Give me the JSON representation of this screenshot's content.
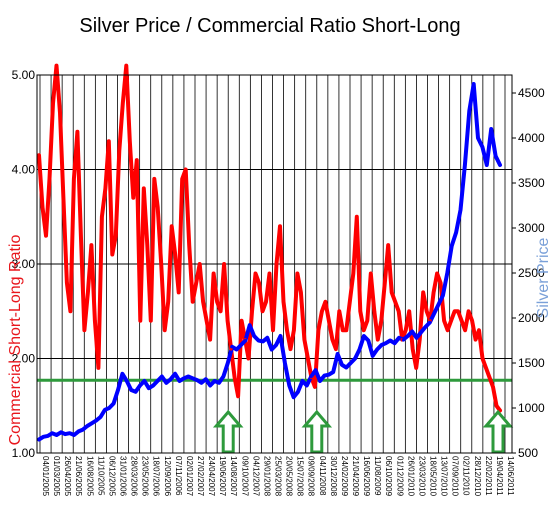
{
  "chart_data": {
    "type": "line",
    "title": "Silver Price / Commercial Ratio Short-Long",
    "ylabel_left": "Commercial Short-Long Ratio",
    "ylabel_right": "Silver Price",
    "ylim_left": [
      1.0,
      5.0
    ],
    "ylim_right": [
      500,
      4700
    ],
    "yticks_left": [
      "1.00",
      "2.00",
      "3.00",
      "4.00",
      "5.00"
    ],
    "yticks_right": [
      "500",
      "1000",
      "1500",
      "2000",
      "2500",
      "3000",
      "3500",
      "4000",
      "4500"
    ],
    "x_tick_labels": [
      "04/01/2005",
      "01/03/2005",
      "26/04/2005",
      "21/06/2005",
      "16/08/2005",
      "11/10/2005",
      "06/12/2005",
      "31/01/2006",
      "28/03/2006",
      "23/05/2006",
      "18/07/2006",
      "12/09/2006",
      "07/11/2006",
      "02/01/2007",
      "27/02/2007",
      "24/04/2007",
      "19/06/2007",
      "14/08/2007",
      "09/10/2007",
      "04/12/2007",
      "29/01/2008",
      "25/03/2008",
      "20/05/2008",
      "15/07/2008",
      "09/09/2008",
      "04/11/2008",
      "30/12/2008",
      "24/02/2009",
      "21/04/2009",
      "16/06/2009",
      "11/08/2009",
      "06/10/2009",
      "01/12/2009",
      "26/01/2010",
      "23/03/2010",
      "18/05/2010",
      "13/07/2010",
      "07/09/2010",
      "02/11/2010",
      "28/12/2010",
      "22/02/2011",
      "19/04/2011",
      "14/06/2011"
    ],
    "grid": true,
    "reference_line": {
      "axis": "left",
      "value": 1.77,
      "color": "#2e9a3c"
    },
    "arrow_markers_at": [
      "14/08/2007",
      "04/11/2008",
      "14/06/2011"
    ],
    "series": [
      {
        "name": "Commercial Short-Long Ratio",
        "axis": "left",
        "color": "#ff0000",
        "values": [
          4.15,
          3.6,
          3.3,
          3.9,
          4.7,
          5.1,
          4.6,
          3.7,
          2.8,
          2.5,
          3.9,
          4.4,
          3.3,
          2.3,
          2.7,
          3.2,
          2.4,
          1.9,
          3.5,
          3.8,
          4.3,
          3.1,
          3.3,
          4.2,
          4.7,
          5.1,
          4.3,
          3.7,
          4.1,
          2.4,
          3.8,
          3.2,
          2.4,
          3.9,
          3.6,
          3.0,
          2.3,
          2.6,
          3.4,
          3.1,
          2.7,
          3.9,
          4.0,
          3.2,
          2.6,
          2.8,
          3.0,
          2.6,
          2.4,
          2.2,
          2.9,
          2.6,
          2.5,
          3.0,
          2.4,
          2.1,
          1.8,
          1.6,
          2.4,
          2.2,
          2.0,
          2.5,
          2.9,
          2.8,
          2.5,
          2.6,
          2.9,
          2.3,
          3.0,
          3.4,
          2.6,
          2.3,
          2.1,
          2.3,
          2.9,
          2.7,
          2.2,
          2.0,
          1.8,
          1.7,
          2.3,
          2.5,
          2.6,
          2.4,
          2.2,
          2.1,
          2.5,
          2.3,
          2.3,
          2.6,
          2.9,
          3.5,
          2.5,
          2.3,
          2.4,
          2.9,
          2.5,
          2.2,
          2.4,
          2.8,
          3.2,
          2.7,
          2.6,
          2.5,
          2.2,
          2.3,
          2.5,
          2.1,
          1.9,
          2.2,
          2.7,
          2.5,
          2.4,
          2.7,
          2.9,
          2.8,
          2.4,
          2.3,
          2.4,
          2.5,
          2.5,
          2.4,
          2.3,
          2.5,
          2.4,
          2.2,
          2.3,
          2.0,
          1.9,
          1.8,
          1.7,
          1.5,
          1.45
        ],
        "right_axis_note": "series plotted against left axis"
      },
      {
        "name": "Silver Price",
        "axis": "right",
        "color": "#0000ff",
        "values": [
          650,
          680,
          690,
          720,
          700,
          730,
          710,
          720,
          700,
          740,
          760,
          800,
          830,
          860,
          900,
          980,
          1000,
          1050,
          1200,
          1380,
          1300,
          1200,
          1180,
          1250,
          1300,
          1220,
          1250,
          1300,
          1350,
          1280,
          1320,
          1380,
          1300,
          1330,
          1350,
          1330,
          1310,
          1280,
          1320,
          1250,
          1300,
          1280,
          1350,
          1500,
          1680,
          1650,
          1700,
          1750,
          1920,
          1800,
          1750,
          1740,
          1780,
          1650,
          1700,
          1800,
          1500,
          1250,
          1120,
          1180,
          1300,
          1250,
          1350,
          1420,
          1300,
          1360,
          1370,
          1400,
          1600,
          1480,
          1450,
          1500,
          1550,
          1650,
          1800,
          1750,
          1580,
          1650,
          1700,
          1720,
          1750,
          1720,
          1780,
          1760,
          1800,
          1850,
          1780,
          1840,
          1900,
          1950,
          2050,
          2150,
          2250,
          2500,
          2800,
          2950,
          3200,
          3700,
          4300,
          4600,
          4000,
          3900,
          3700,
          4100,
          3800,
          3700
        ]
      }
    ]
  }
}
